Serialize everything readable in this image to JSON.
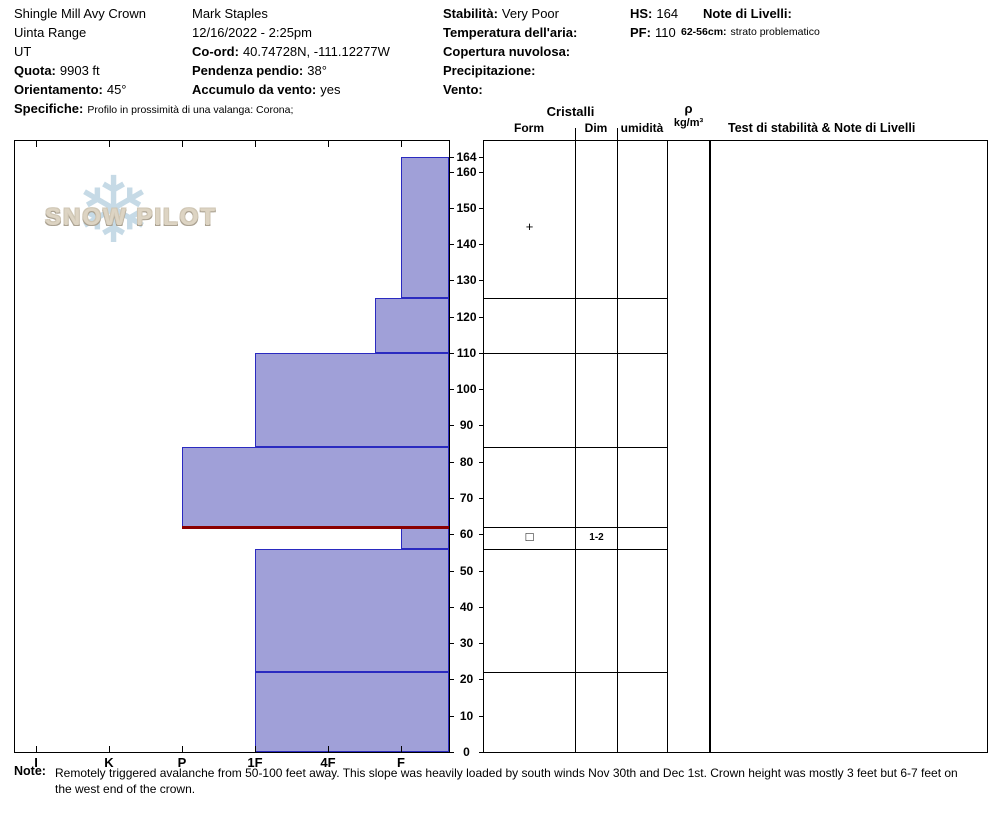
{
  "header": {
    "site": {
      "name": "Shingle Mill Avy Crown",
      "range": "Uinta Range",
      "state": "UT",
      "elevation_label": "Quota:",
      "elevation_value": "9903 ft",
      "aspect_label": "Orientamento:",
      "aspect_value": "45°",
      "notes_label": "Specifiche:",
      "notes_value": "Profilo in prossimità di una valanga: Corona;"
    },
    "observation": {
      "observer": "Mark Staples",
      "datetime": "12/16/2022 - 2:25pm",
      "coord_label": "Co-ord:",
      "coord_value": "40.74728N, -111.12277W",
      "slope_label": "Pendenza pendio:",
      "slope_value": "38°",
      "wind_loading_label": "Accumulo da vento:",
      "wind_loading_value": "yes"
    },
    "conditions": {
      "stability_label": "Stabilità:",
      "stability_value": "Very Poor",
      "air_temp_label": "Temperatura dell'aria:",
      "air_temp_value": "",
      "sky_label": "Copertura nuvolosa:",
      "sky_value": "",
      "precip_label": "Precipitazione:",
      "precip_value": "",
      "wind_label": "Vento:",
      "wind_value": ""
    },
    "depths": {
      "hs_label": "HS:",
      "hs_value": "164",
      "pf_label": "PF:",
      "pf_value": "110"
    },
    "layer_notes": {
      "label": "Note di Livelli:",
      "entry_depth": "62-56cm:",
      "entry_text": "strato problematico"
    }
  },
  "columns": {
    "cristalli": "Cristalli",
    "form": "Form",
    "dim": "Dim",
    "humidity": "umidità",
    "rho": "ρ",
    "rho_units": "kg/m³",
    "tests": "Test di stabilità & Note di Livelli"
  },
  "watermark": {
    "text": "SNOW PILOT"
  },
  "footer": {
    "note_label": "Note:",
    "note_text": "Remotely triggered avalanche from 50-100 feet away. This slope was heavily loaded by south winds Nov 30th and Dec 1st. Crown height was mostly 3 feet but 6-7 feet on the west end of the crown."
  },
  "chart_data": {
    "type": "bar",
    "orientation": "horizontal",
    "title": "",
    "xlabel": "",
    "ylabel": "",
    "ylim": [
      0,
      164
    ],
    "hardness_categories": [
      "I",
      "K",
      "P",
      "1F",
      "4F",
      "F"
    ],
    "depth_ticks": [
      0,
      10,
      20,
      30,
      40,
      50,
      60,
      70,
      80,
      90,
      100,
      110,
      120,
      130,
      140,
      150,
      160,
      164
    ],
    "bar_fill": "#a0a0d8",
    "bar_stroke": "#2a2ac0",
    "layers": [
      {
        "from": 164,
        "to": 125,
        "hardness": "F",
        "hx": 5
      },
      {
        "from": 125,
        "to": 110,
        "hardness": "F+",
        "hx": 4.65
      },
      {
        "from": 110,
        "to": 84,
        "hardness": "1F",
        "hx": 3
      },
      {
        "from": 84,
        "to": 62,
        "hardness": "P",
        "hx": 2
      },
      {
        "from": 62,
        "to": 56,
        "hardness": "F",
        "hx": 5
      },
      {
        "from": 56,
        "to": 22,
        "hardness": "1F",
        "hx": 3
      },
      {
        "from": 22,
        "to": 0,
        "hardness": "1F",
        "hx": 3
      }
    ],
    "layer_boundaries": [
      125,
      110,
      84,
      62,
      56,
      22
    ],
    "problem_line": {
      "depth": 62,
      "hx": 2,
      "color": "#8b0000",
      "label": "62-56cm: strato problematico"
    },
    "grain_rows": [
      {
        "from": 164,
        "to": 125,
        "form": "+",
        "dim": ""
      },
      {
        "from": 62,
        "to": 56,
        "form": "□",
        "dim": "1-2"
      }
    ]
  }
}
